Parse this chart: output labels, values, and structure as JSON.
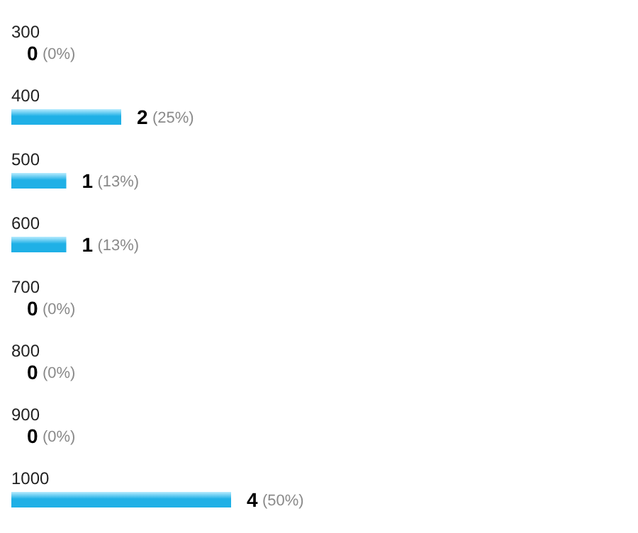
{
  "chart_data": {
    "type": "bar",
    "orientation": "horizontal",
    "categories": [
      "300",
      "400",
      "500",
      "600",
      "700",
      "800",
      "900",
      "1000"
    ],
    "values": [
      0,
      2,
      1,
      1,
      0,
      0,
      0,
      4
    ],
    "color": "#1fb0e6",
    "data_labels": true,
    "annotations": [
      "(0%)",
      "(25%)",
      "(13%)",
      "(13%)",
      "(0%)",
      "(0%)",
      "(0%)",
      "(50%)"
    ]
  }
}
